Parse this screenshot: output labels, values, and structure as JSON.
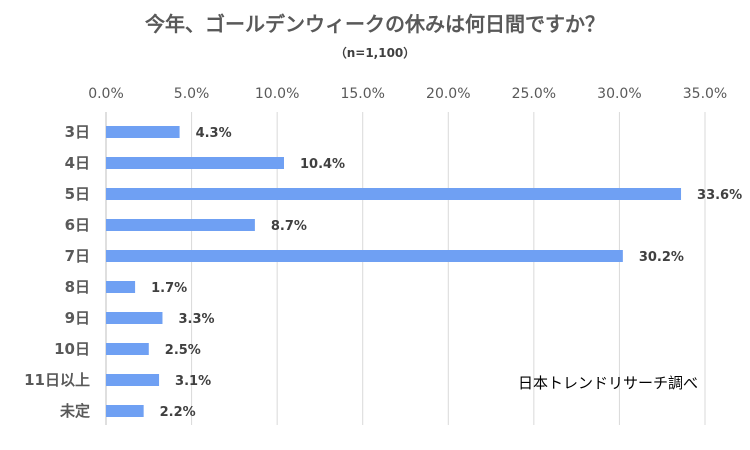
{
  "chart_data": {
    "type": "bar",
    "orientation": "horizontal",
    "title": "今年、ゴールデンウィークの休みは何日間ですか？",
    "subtitle": "（n=1,100）",
    "categories": [
      "3日",
      "4日",
      "5日",
      "6日",
      "7日",
      "8日",
      "9日",
      "10日",
      "11日以上",
      "未定"
    ],
    "values": [
      4.3,
      10.4,
      33.6,
      8.7,
      30.2,
      1.7,
      3.3,
      2.5,
      3.1,
      2.2
    ],
    "value_labels": [
      "4.3%",
      "10.4%",
      "33.6%",
      "8.7%",
      "30.2%",
      "1.7%",
      "3.3%",
      "2.5%",
      "3.1%",
      "2.2%"
    ],
    "x_ticks": [
      "0.0%",
      "5.0%",
      "10.0%",
      "15.0%",
      "20.0%",
      "25.0%",
      "30.0%",
      "35.0%"
    ],
    "xlim": [
      0,
      35
    ],
    "axis_position": "top",
    "grid": true,
    "bar_color": "#6fa0f3",
    "grid_color": "#d9d9d9",
    "source": "日本トレンドリサーチ調べ"
  }
}
